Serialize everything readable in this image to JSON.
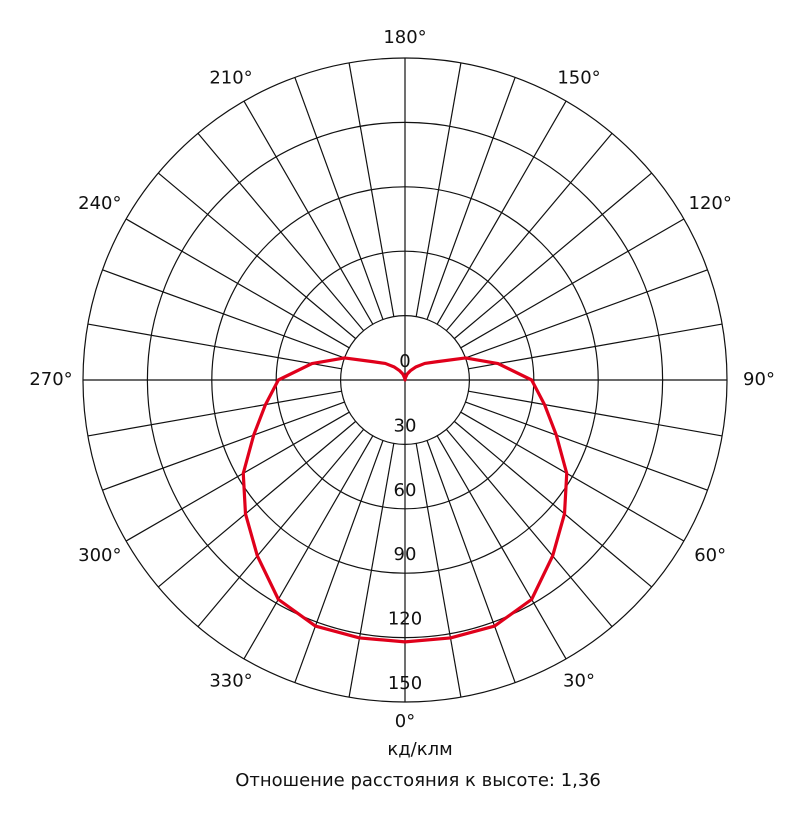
{
  "chart_data": {
    "type": "polar",
    "x_label": "кд/клм",
    "caption": "Отношение расстояния к высоте: 1,36",
    "angles": [
      0,
      10,
      20,
      30,
      40,
      50,
      60,
      70,
      80,
      90,
      100,
      110,
      120,
      130,
      140,
      150,
      160,
      170,
      180,
      190,
      200,
      210,
      220,
      230,
      240,
      250,
      260,
      270,
      280,
      290,
      300,
      310,
      320,
      330,
      340,
      350,
      360
    ],
    "values": [
      122,
      122,
      122,
      118,
      107,
      97,
      87,
      75,
      66,
      59,
      44,
      30,
      17,
      12,
      8,
      5,
      3,
      1,
      0,
      1,
      3,
      5,
      8,
      12,
      17,
      30,
      44,
      59,
      66,
      75,
      87,
      97,
      107,
      118,
      122,
      122,
      122
    ],
    "color": "#e0001b",
    "rlim": [
      0,
      150
    ],
    "rticks": [
      0,
      30,
      60,
      90,
      120,
      150
    ],
    "angle_ticks": [
      {
        "value": 0,
        "label": "0°"
      },
      {
        "value": 30,
        "label": "30°"
      },
      {
        "value": 60,
        "label": "60°"
      },
      {
        "value": 90,
        "label": "90°"
      },
      {
        "value": 120,
        "label": "120°"
      },
      {
        "value": 150,
        "label": "150°"
      },
      {
        "value": 180,
        "label": "180°"
      },
      {
        "value": 210,
        "label": "210°"
      },
      {
        "value": 240,
        "label": "240°"
      },
      {
        "value": 270,
        "label": "270°"
      },
      {
        "value": 300,
        "label": "300°"
      },
      {
        "value": 330,
        "label": "330°"
      }
    ],
    "grid": true
  }
}
